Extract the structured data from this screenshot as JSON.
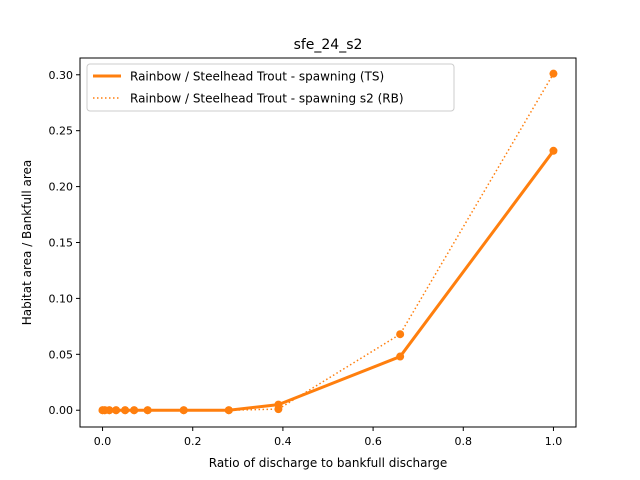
{
  "chart_data": {
    "type": "line",
    "title": "sfe_24_s2",
    "xlabel": "Ratio of discharge to bankfull discharge",
    "ylabel": "Habitat area / Bankfull area",
    "xlim": [
      -0.05,
      1.05
    ],
    "ylim": [
      -0.015,
      0.315
    ],
    "xticks": [
      0.0,
      0.2,
      0.4,
      0.6,
      0.8,
      1.0
    ],
    "xtick_labels": [
      "0.0",
      "0.2",
      "0.4",
      "0.6",
      "0.8",
      "1.0"
    ],
    "yticks": [
      0.0,
      0.05,
      0.1,
      0.15,
      0.2,
      0.25,
      0.3
    ],
    "ytick_labels": [
      "0.00",
      "0.05",
      "0.10",
      "0.15",
      "0.20",
      "0.25",
      "0.30"
    ],
    "grid": false,
    "legend_position": "top-left",
    "series": [
      {
        "name": "Rainbow / Steelhead Trout - spawning (TS)",
        "style": "solid",
        "color": "#ff7f0e",
        "x": [
          0.0,
          0.005,
          0.015,
          0.03,
          0.05,
          0.07,
          0.1,
          0.18,
          0.28,
          0.39,
          0.66,
          1.0
        ],
        "y": [
          0.0,
          0.0,
          0.0,
          0.0,
          0.0,
          0.0,
          0.0,
          0.0,
          0.0,
          0.005,
          0.048,
          0.232
        ]
      },
      {
        "name": "Rainbow / Steelhead Trout - spawning s2 (RB)",
        "style": "dotted",
        "color": "#ff7f0e",
        "x": [
          0.0,
          0.005,
          0.015,
          0.03,
          0.05,
          0.07,
          0.1,
          0.18,
          0.28,
          0.39,
          0.66,
          1.0
        ],
        "y": [
          0.0,
          0.0,
          0.0,
          0.0,
          0.0,
          0.0,
          0.0,
          0.0,
          0.0,
          0.001,
          0.068,
          0.301
        ]
      }
    ]
  }
}
